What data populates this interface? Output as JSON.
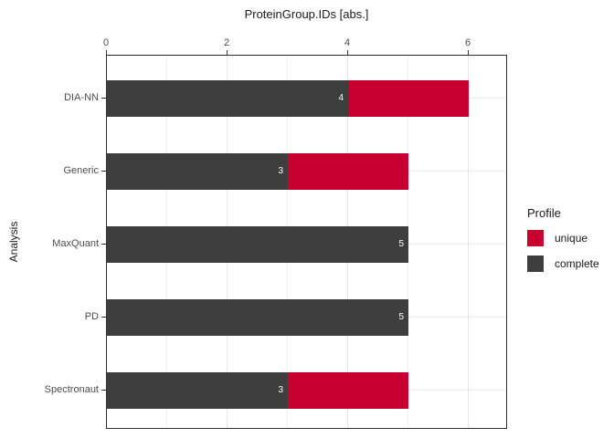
{
  "title": "ProteinGroup.IDs [abs.]",
  "y_axis_title": "Analysis",
  "legend": {
    "title": "Profile",
    "items": [
      {
        "label": "unique",
        "color": "#c8002f"
      },
      {
        "label": "complete",
        "color": "#3e3e3e"
      }
    ]
  },
  "chart_data": {
    "type": "bar",
    "orientation": "horizontal",
    "stacked": true,
    "title": "ProteinGroup.IDs [abs.]",
    "xlabel": "ProteinGroup.IDs [abs.]",
    "ylabel": "Analysis",
    "categories": [
      "DIA-NN",
      "Generic",
      "MaxQuant",
      "PD",
      "Spectronaut"
    ],
    "series": [
      {
        "name": "complete",
        "color": "#3e3e3e",
        "values": [
          4,
          3,
          5,
          5,
          3
        ]
      },
      {
        "name": "unique",
        "color": "#c8002f",
        "values": [
          2,
          2,
          0,
          0,
          2
        ]
      }
    ],
    "totals": [
      6,
      5,
      5,
      5,
      5
    ],
    "bar_value_labels": [
      "4",
      "3",
      "5",
      "5",
      "3"
    ],
    "bar_value_label_color": "#ffffff",
    "x_ticks": [
      0,
      2,
      4,
      6
    ],
    "x_major_gridlines": [
      2,
      4,
      6
    ],
    "x_minor_gridlines": [
      1,
      3,
      5
    ],
    "xlim": [
      0,
      6.65
    ],
    "x_axis_position": "top",
    "y_axis_side": "left",
    "grid": true,
    "legend_position": "right",
    "legend_title": "Profile",
    "panel_border_color": "#2e2e2e",
    "axis_text_color": "#4d4d4d",
    "background_color": "#ffffff"
  }
}
